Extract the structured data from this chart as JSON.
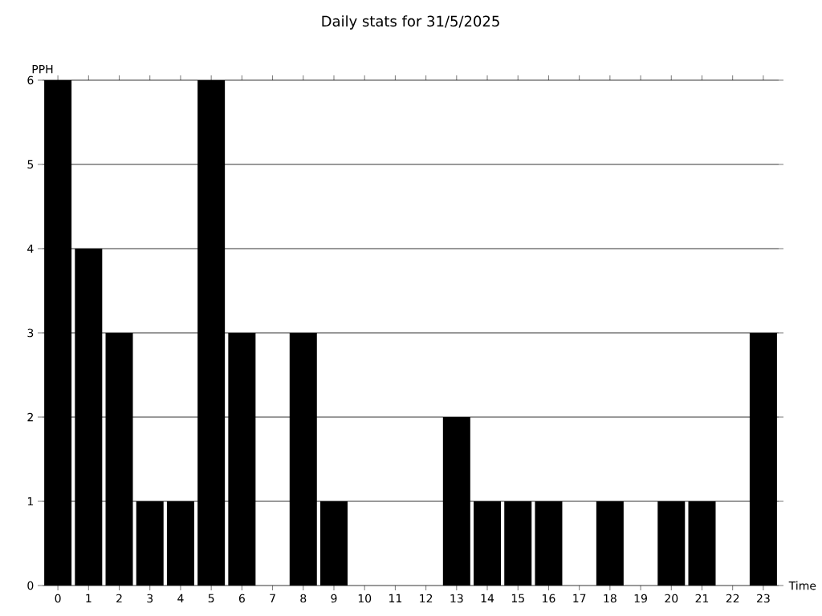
{
  "chart_data": {
    "type": "bar",
    "title": "Daily stats for 31/5/2025",
    "xlabel": "Time",
    "ylabel": "PPH",
    "categories": [
      "0",
      "1",
      "2",
      "3",
      "4",
      "5",
      "6",
      "7",
      "8",
      "9",
      "10",
      "11",
      "12",
      "13",
      "14",
      "15",
      "16",
      "17",
      "18",
      "19",
      "20",
      "21",
      "22",
      "23"
    ],
    "values": [
      6,
      4,
      3,
      1,
      1,
      6,
      3,
      0,
      3,
      1,
      0,
      0,
      0,
      2,
      1,
      1,
      1,
      0,
      1,
      0,
      1,
      1,
      0,
      3
    ],
    "color": "#000000",
    "ylim": [
      0,
      6
    ],
    "yticks": [
      0,
      1,
      2,
      3,
      4,
      5,
      6
    ],
    "grid": "y"
  }
}
